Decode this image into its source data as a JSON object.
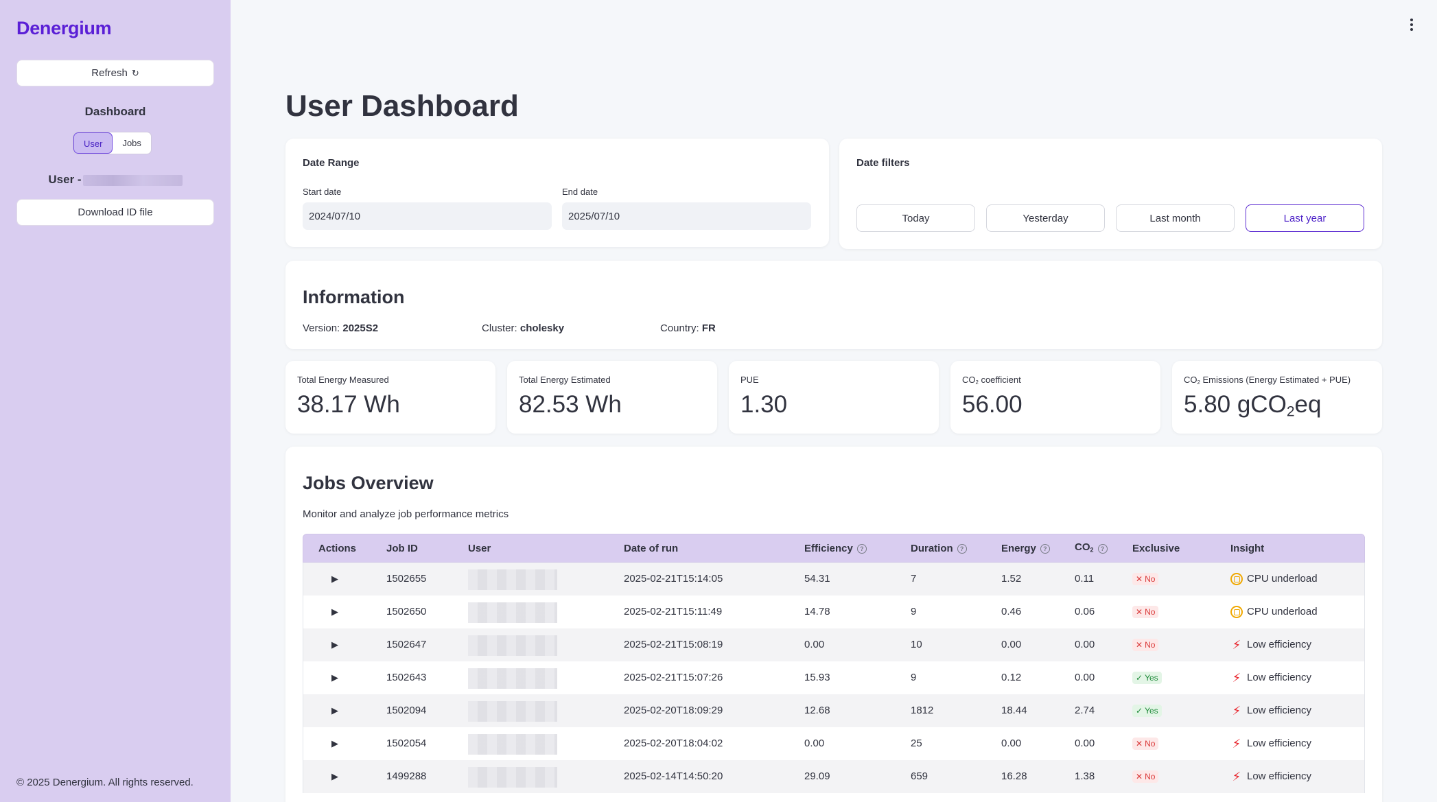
{
  "sidebar": {
    "logo": "Denergium",
    "refresh_label": "Refresh",
    "refresh_icon": "↻",
    "dashboard_title": "Dashboard",
    "tabs": [
      {
        "label": "User",
        "active": true
      },
      {
        "label": "Jobs",
        "active": false
      }
    ],
    "user_label": "User -",
    "download_label": "Download ID file",
    "footer": "© 2025 Denergium. All rights reserved."
  },
  "main": {
    "title": "User Dashboard",
    "date_range": {
      "title": "Date Range",
      "start_label": "Start date",
      "start_value": "2024/07/10",
      "end_label": "End date",
      "end_value": "2025/07/10"
    },
    "date_filters": {
      "title": "Date filters",
      "buttons": [
        {
          "label": "Today",
          "active": false
        },
        {
          "label": "Yesterday",
          "active": false
        },
        {
          "label": "Last month",
          "active": false
        },
        {
          "label": "Last year",
          "active": true
        }
      ]
    },
    "information": {
      "title": "Information",
      "version_label": "Version:",
      "version_value": "2025S2",
      "cluster_label": "Cluster:",
      "cluster_value": "cholesky",
      "country_label": "Country:",
      "country_value": "FR"
    },
    "metrics": {
      "total_energy_measured": {
        "label": "Total Energy Measured",
        "value": "38.17 Wh"
      },
      "total_energy_estimated": {
        "label": "Total Energy Estimated",
        "value": "82.53 Wh"
      },
      "pue": {
        "label": "PUE",
        "value": "1.30"
      },
      "co2_coefficient": {
        "label_a": "CO",
        "label_sub": "2",
        "label_b": " coefficient",
        "value": "56.00"
      },
      "co2_emissions": {
        "label_a": "CO",
        "label_sub": "2",
        "label_b": " Emissions (Energy Estimated + PUE)",
        "value_a": "5.80 gCO",
        "value_sub": "2",
        "value_b": "eq"
      }
    },
    "jobs": {
      "title": "Jobs Overview",
      "subtitle": "Monitor and analyze job performance metrics",
      "headers": {
        "actions": "Actions",
        "job_id": "Job ID",
        "user": "User",
        "date": "Date of run",
        "efficiency": "Efficiency",
        "duration": "Duration",
        "energy": "Energy",
        "co2_a": "CO",
        "co2_sub": "2",
        "exclusive": "Exclusive",
        "insight": "Insight"
      },
      "rows": [
        {
          "job_id": "1502655",
          "date": "2025-02-21T15:14:05",
          "efficiency": "54.31",
          "duration": "7",
          "energy": "1.52",
          "co2": "0.11",
          "exclusive": "No",
          "insight": "CPU underload",
          "insight_icon": "cpu-icon"
        },
        {
          "job_id": "1502650",
          "date": "2025-02-21T15:11:49",
          "efficiency": "14.78",
          "duration": "9",
          "energy": "0.46",
          "co2": "0.06",
          "exclusive": "No",
          "insight": "CPU underload",
          "insight_icon": "cpu-icon"
        },
        {
          "job_id": "1502647",
          "date": "2025-02-21T15:08:19",
          "efficiency": "0.00",
          "duration": "10",
          "energy": "0.00",
          "co2": "0.00",
          "exclusive": "No",
          "insight": "Low efficiency",
          "insight_icon": "bolt-icon"
        },
        {
          "job_id": "1502643",
          "date": "2025-02-21T15:07:26",
          "efficiency": "15.93",
          "duration": "9",
          "energy": "0.12",
          "co2": "0.00",
          "exclusive": "Yes",
          "insight": "Low efficiency",
          "insight_icon": "bolt-icon"
        },
        {
          "job_id": "1502094",
          "date": "2025-02-20T18:09:29",
          "efficiency": "12.68",
          "duration": "1812",
          "energy": "18.44",
          "co2": "2.74",
          "exclusive": "Yes",
          "insight": "Low efficiency",
          "insight_icon": "bolt-icon"
        },
        {
          "job_id": "1502054",
          "date": "2025-02-20T18:04:02",
          "efficiency": "0.00",
          "duration": "25",
          "energy": "0.00",
          "co2": "0.00",
          "exclusive": "No",
          "insight": "Low efficiency",
          "insight_icon": "bolt-icon"
        },
        {
          "job_id": "1499288",
          "date": "2025-02-14T14:50:20",
          "efficiency": "29.09",
          "duration": "659",
          "energy": "16.28",
          "co2": "1.38",
          "exclusive": "No",
          "insight": "Low efficiency",
          "insight_icon": "bolt-icon"
        }
      ]
    }
  },
  "colors": {
    "brand": "#5a1fd6",
    "sidebar_bg": "#d9cdf0",
    "no_badge": "#d93838",
    "yes_badge": "#1f8a3a",
    "cpu_icon": "#f0a800",
    "bolt_icon": "#e8242c"
  }
}
